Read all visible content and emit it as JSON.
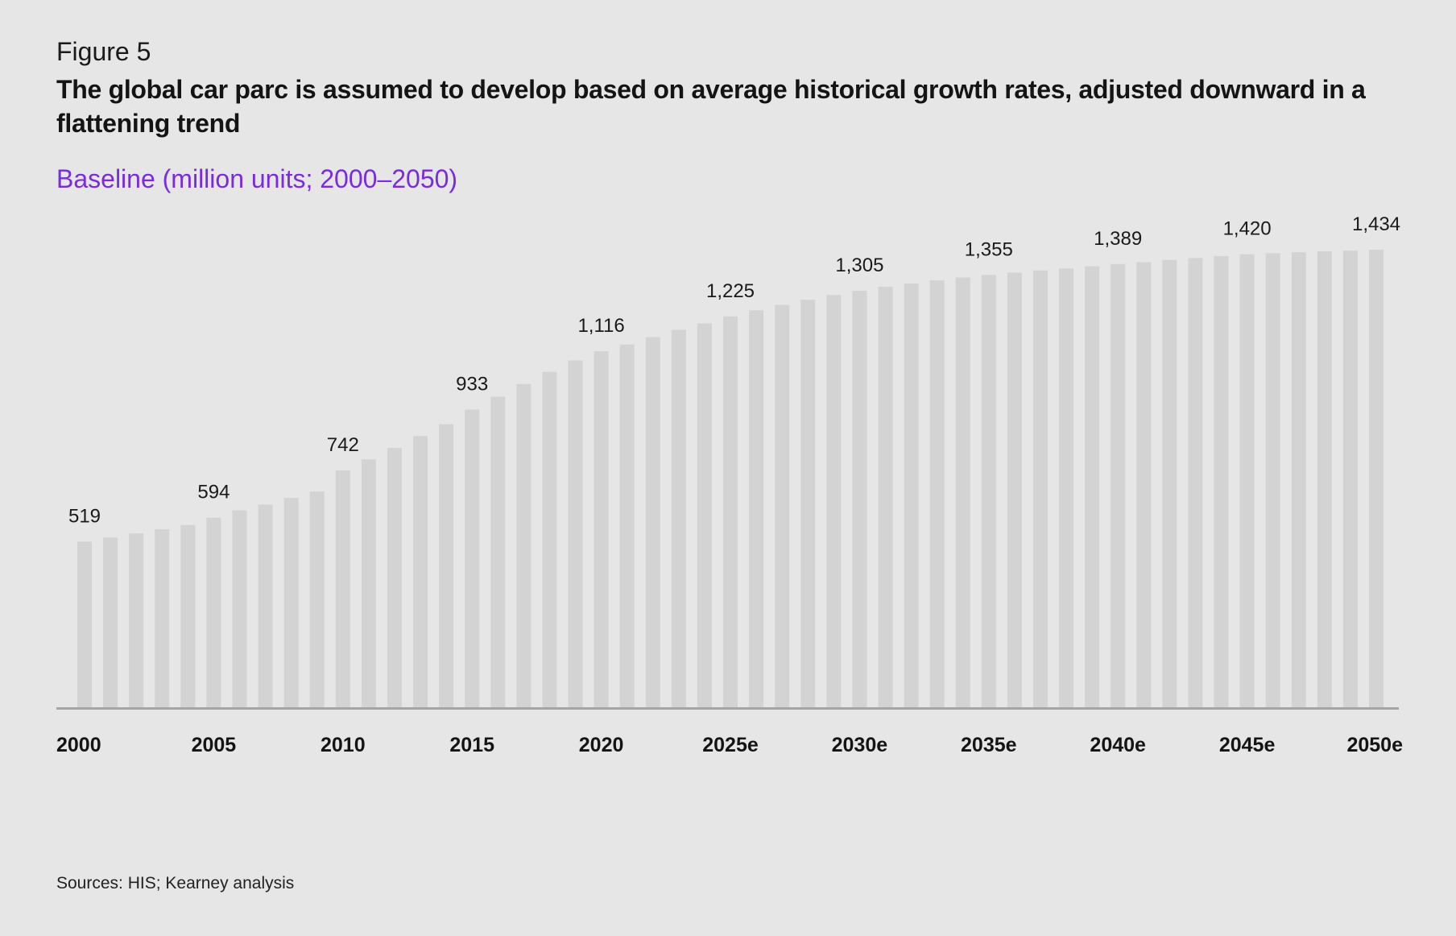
{
  "figure_label": "Figure 5",
  "title": "The global car parc is assumed to develop based on average historical growth rates, adjusted downward in a flattening trend",
  "subtitle": "Baseline (million units; 2000–2050)",
  "source": "Sources: HIS; Kearney analysis",
  "colors": {
    "background": "#e6e6e6",
    "bar": "#d3d3d3",
    "axis": "#a6a6a6",
    "subtitle": "#7a2be0"
  },
  "chart_data": {
    "type": "bar",
    "x": [
      2000,
      2001,
      2002,
      2003,
      2004,
      2005,
      2006,
      2007,
      2008,
      2009,
      2010,
      2011,
      2012,
      2013,
      2014,
      2015,
      2016,
      2017,
      2018,
      2019,
      2020,
      2021,
      2022,
      2023,
      2024,
      2025,
      2026,
      2027,
      2028,
      2029,
      2030,
      2031,
      2032,
      2033,
      2034,
      2035,
      2036,
      2037,
      2038,
      2039,
      2040,
      2041,
      2042,
      2043,
      2044,
      2045,
      2046,
      2047,
      2048,
      2049,
      2050
    ],
    "values": [
      519,
      532,
      545,
      558,
      571,
      594,
      617,
      635,
      656,
      676,
      742,
      777,
      813,
      850,
      887,
      933,
      973,
      1013,
      1051,
      1087,
      1116,
      1137,
      1160,
      1183,
      1203,
      1225,
      1244,
      1261,
      1277,
      1292,
      1305,
      1318,
      1328,
      1338,
      1347,
      1355,
      1362,
      1369,
      1375,
      1382,
      1389,
      1395,
      1402,
      1408,
      1414,
      1420,
      1423,
      1426,
      1429,
      1431,
      1434
    ],
    "labeled_points": [
      {
        "x": 2000,
        "label": "519"
      },
      {
        "x": 2005,
        "label": "594"
      },
      {
        "x": 2010,
        "label": "742"
      },
      {
        "x": 2015,
        "label": "933"
      },
      {
        "x": 2020,
        "label": "1,116"
      },
      {
        "x": 2025,
        "label": "1,225"
      },
      {
        "x": 2030,
        "label": "1,305"
      },
      {
        "x": 2035,
        "label": "1,355"
      },
      {
        "x": 2040,
        "label": "1,389"
      },
      {
        "x": 2045,
        "label": "1,420"
      },
      {
        "x": 2050,
        "label": "1,434"
      }
    ],
    "tick_labels": [
      {
        "x": 2000,
        "label": "2000"
      },
      {
        "x": 2005,
        "label": "2005"
      },
      {
        "x": 2010,
        "label": "2010"
      },
      {
        "x": 2015,
        "label": "2015"
      },
      {
        "x": 2020,
        "label": "2020"
      },
      {
        "x": 2025,
        "label": "2025e"
      },
      {
        "x": 2030,
        "label": "2030e"
      },
      {
        "x": 2035,
        "label": "2035e"
      },
      {
        "x": 2040,
        "label": "2040e"
      },
      {
        "x": 2045,
        "label": "2045e"
      },
      {
        "x": 2050,
        "label": "2050e"
      }
    ],
    "ylim": [
      0,
      1434
    ],
    "grid": false,
    "legend": "none"
  }
}
